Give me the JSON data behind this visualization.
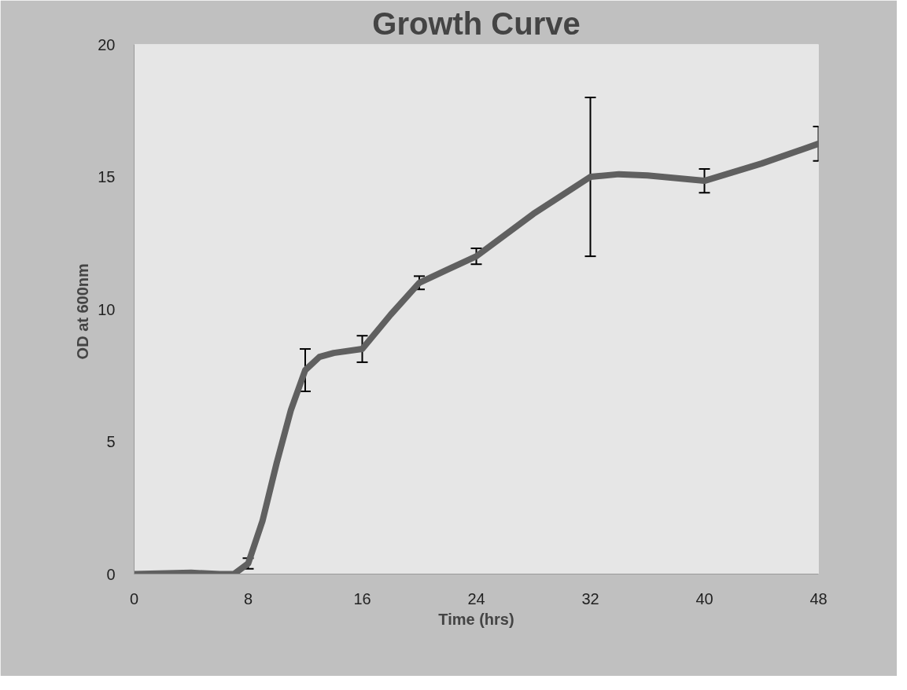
{
  "chart_data": {
    "type": "line",
    "title": "Growth Curve",
    "xlabel": "Time (hrs)",
    "ylabel": "OD  at 600nm",
    "x": [
      0,
      4,
      6,
      7,
      8,
      9,
      10,
      11,
      12,
      13,
      14,
      16,
      18,
      20,
      22,
      24,
      28,
      32,
      34,
      36,
      40,
      44,
      48
    ],
    "series": [
      {
        "color": "#606060",
        "values": [
          0,
          0.05,
          0,
          0,
          0.4,
          2,
          4.2,
          6.2,
          7.7,
          8.2,
          8.35,
          8.5,
          9.8,
          11,
          11.5,
          12,
          13.6,
          15,
          15.1,
          15.05,
          14.85,
          15.5,
          16.25
        ],
        "errors": [
          null,
          null,
          null,
          null,
          0.2,
          null,
          null,
          null,
          0.8,
          null,
          null,
          0.5,
          null,
          0.25,
          null,
          0.3,
          null,
          3,
          null,
          null,
          0.45,
          null,
          0.65
        ]
      }
    ],
    "xlim": [
      0,
      48
    ],
    "ylim": [
      0,
      20
    ],
    "xticks": [
      0,
      8,
      16,
      24,
      32,
      40,
      48
    ],
    "yticks": [
      0,
      5,
      10,
      15,
      20
    ],
    "marker": "none",
    "line_style": "solid"
  }
}
